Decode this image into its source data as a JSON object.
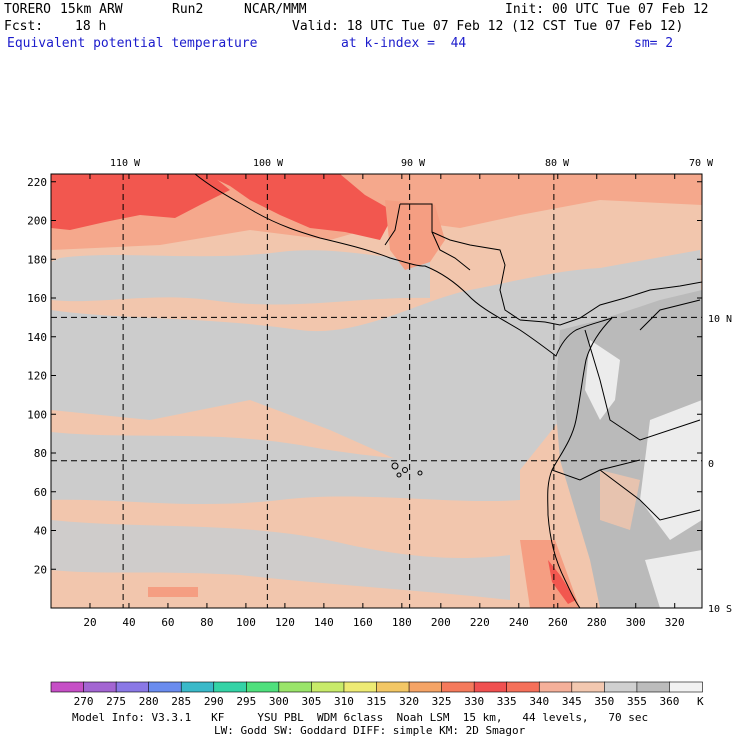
{
  "header": {
    "model": "TORERO",
    "resolution": "15km ARW",
    "run": "Run2",
    "org": "NCAR/MMM",
    "init": "Init: 00 UTC Tue 07 Feb 12",
    "fcst_label": "Fcst:",
    "fcst_value": "18 h",
    "valid": "Valid: 18 UTC Tue 07 Feb 12 (12 CST Tue 07 Feb 12)",
    "field": "Equivalent potential temperature",
    "level": "at k-index =  44",
    "smooth": "sm= 2"
  },
  "map": {
    "lon_labels": [
      "110 W",
      "100 W",
      "90 W",
      "80 W",
      "70 W"
    ],
    "lat_labels": [
      "10 N",
      "0",
      "10 S"
    ],
    "x_ticks": [
      "20",
      "40",
      "60",
      "80",
      "100",
      "120",
      "140",
      "160",
      "180",
      "200",
      "220",
      "240",
      "260",
      "280",
      "300",
      "320"
    ],
    "y_ticks": [
      "20",
      "40",
      "60",
      "80",
      "100",
      "120",
      "140",
      "160",
      "180",
      "200",
      "220"
    ],
    "x_range": [
      0,
      334
    ],
    "y_range": [
      0,
      224
    ],
    "gridline_lon_x": [
      37,
      111,
      184,
      258
    ],
    "gridline_lat_y": [
      150,
      76
    ]
  },
  "colorbar": {
    "labels": [
      "270",
      "275",
      "280",
      "285",
      "290",
      "295",
      "300",
      "305",
      "310",
      "315",
      "320",
      "325",
      "330",
      "335",
      "340",
      "345",
      "350",
      "355",
      "360"
    ],
    "unit": "K",
    "colors": [
      "#c64fc6",
      "#a365d2",
      "#8a78e6",
      "#6a8cef",
      "#3ab9c9",
      "#34d3a6",
      "#4fe07d",
      "#9ae56a",
      "#c8eb6a",
      "#eeeb74",
      "#f3c765",
      "#f5a466",
      "#f57a5c",
      "#f05050",
      "#f5705a",
      "#f5b09a",
      "#f3c8b0",
      "#d0d0d0",
      "#bcbcbc",
      "#f2f2f2"
    ]
  },
  "footer": {
    "line1": "Model Info: V3.3.1   KF     YSU PBL  WDM 6class  Noah LSM  15 km,   44 levels,   70 sec",
    "line2": "LW: Godd SW: Goddard DIFF: simple KM: 2D Smagor"
  },
  "field_colors": {
    "cool": "#cccccc",
    "mild": "#f2c6ad",
    "warm": "#f59e82",
    "hot": "#f2574f",
    "cold_land": "#ececec",
    "dark_land": "#bababa"
  }
}
